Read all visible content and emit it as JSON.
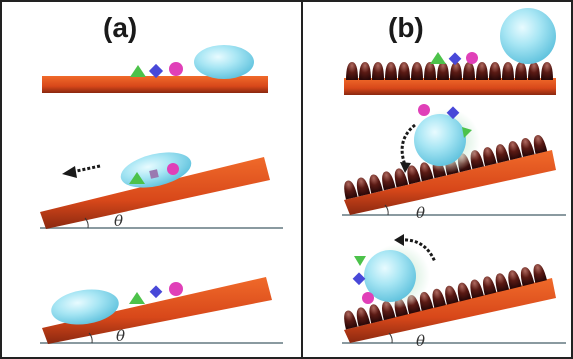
{
  "panels": [
    {
      "label": "(a)"
    },
    {
      "label": "(b)"
    }
  ],
  "angle_symbol": "θ",
  "colors": {
    "substrate": "#e0501c",
    "substrate_dark": "#8a2810",
    "rough_surface": "#4a1410",
    "droplet": "#8fd8ec",
    "ground_line": "#8a9aa0",
    "particle_green": "#4cc24a",
    "particle_blue": "#4848d8",
    "particle_magenta": "#e040b8",
    "arrow": "#1a1a1a"
  }
}
